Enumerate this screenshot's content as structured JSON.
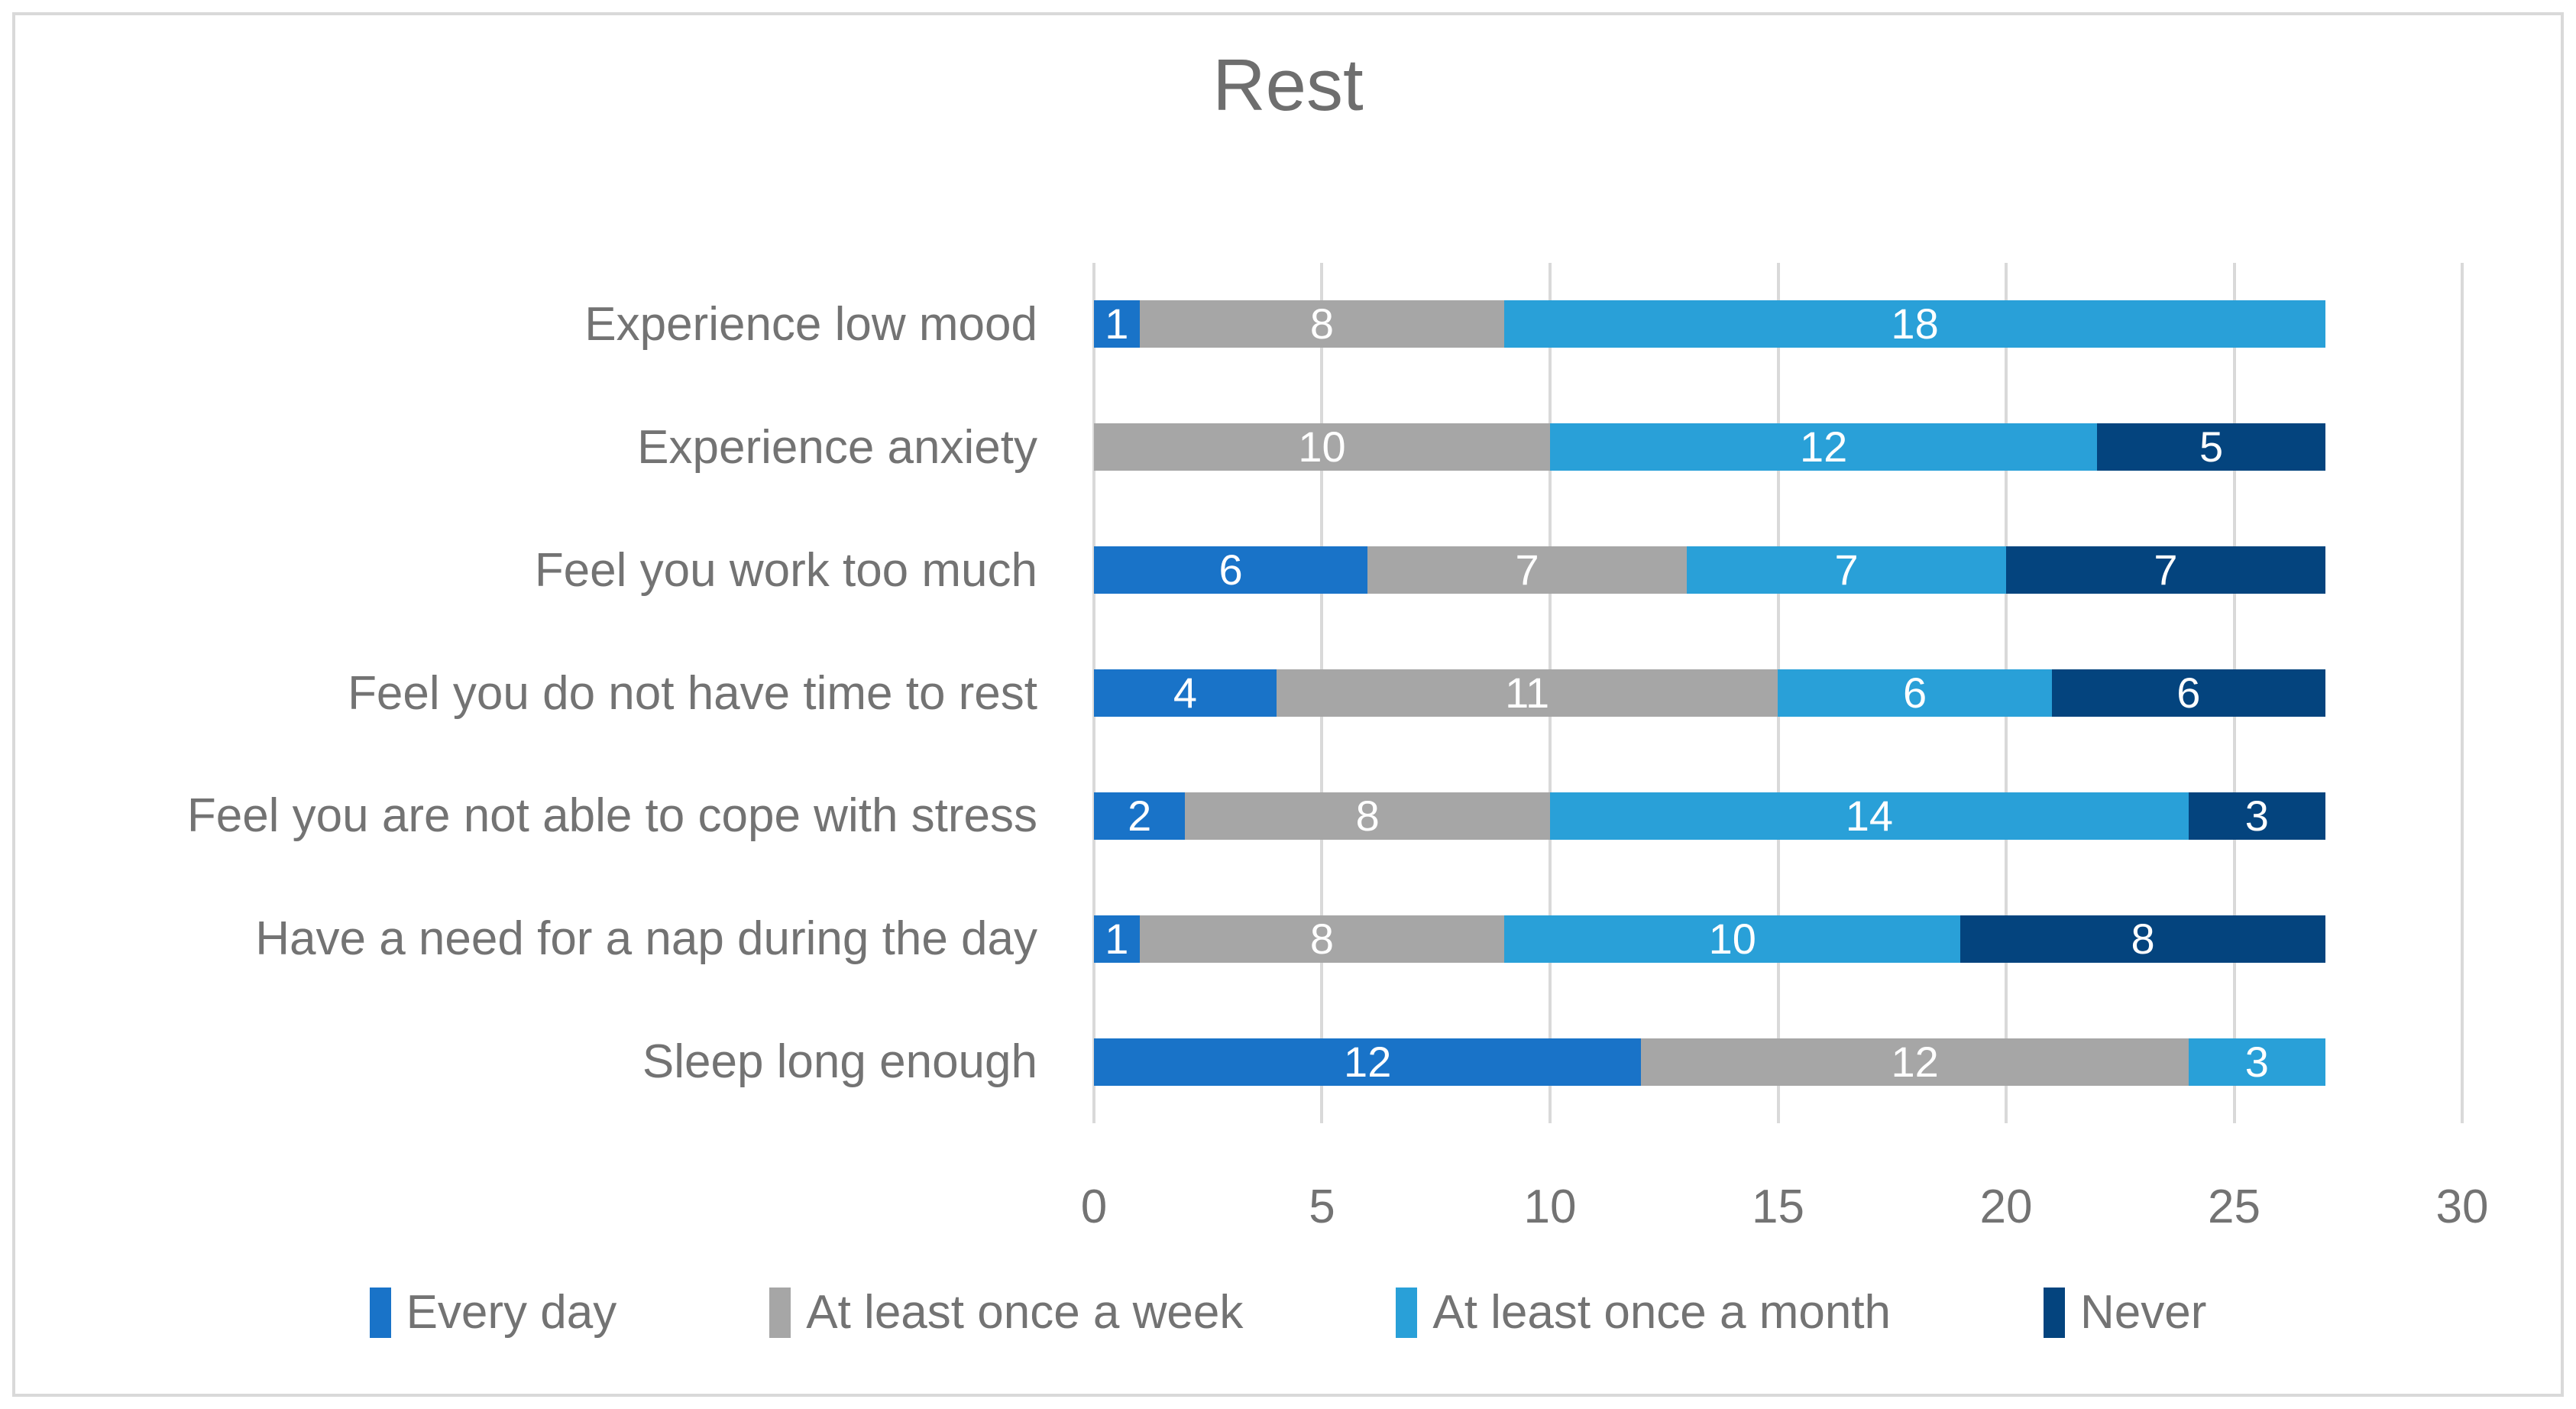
{
  "chart_data": {
    "type": "bar",
    "orientation": "horizontal",
    "stacked": true,
    "title": "Rest",
    "categories": [
      "Experience low mood",
      "Experience anxiety",
      "Feel you work too much",
      "Feel you do not have time to rest",
      "Feel you are not able to cope with stress",
      "Have a need for a nap during the day",
      "Sleep long enough"
    ],
    "series": [
      {
        "name": "Every day",
        "color": "#1973C8",
        "values": [
          1,
          0,
          6,
          4,
          2,
          1,
          12
        ]
      },
      {
        "name": "At least once a week",
        "color": "#A6A6A6",
        "values": [
          8,
          10,
          7,
          11,
          8,
          8,
          12
        ]
      },
      {
        "name": "At least once a month",
        "color": "#29A0D8",
        "values": [
          18,
          12,
          7,
          6,
          14,
          10,
          3
        ]
      },
      {
        "name": "Never",
        "color": "#04447E",
        "values": [
          0,
          5,
          7,
          6,
          3,
          8,
          0
        ]
      }
    ],
    "row_totals": [
      27,
      27,
      27,
      27,
      27,
      27,
      27
    ],
    "xlim": [
      0,
      30
    ],
    "x_ticks": [
      0,
      5,
      10,
      15,
      20,
      25,
      30
    ],
    "grid": true,
    "data_labels": true,
    "legend_position": "bottom",
    "styles": {
      "grid_color": "#D9D9D9",
      "frame_border_color": "#D9D9D9",
      "title_color": "#6E6E6E",
      "axis_text_color": "#737373",
      "data_label_color": "#FFFFFF",
      "background": "#FFFFFF"
    }
  }
}
